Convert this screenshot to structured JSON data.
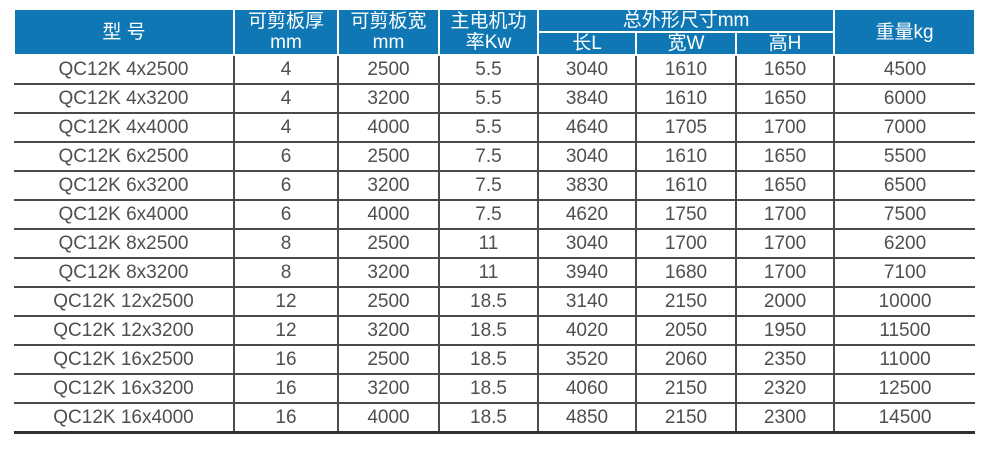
{
  "accent_color": "#0e77b4",
  "grid_color": "#4a4a4a",
  "table": {
    "header": {
      "model": "型 号",
      "thickness": "可剪板厚\nmm",
      "plate_width": "可剪板宽\nmm",
      "power": "主电机功\n率Kw",
      "dimensions_group": "总外形尺寸mm",
      "length_l": "长L",
      "width_w": "宽W",
      "height_h": "高H",
      "weight": "重量kg"
    },
    "rows": [
      [
        "QC12K 4x2500",
        "4",
        "2500",
        "5.5",
        "3040",
        "1610",
        "1650",
        "4500"
      ],
      [
        "QC12K 4x3200",
        "4",
        "3200",
        "5.5",
        "3840",
        "1610",
        "1650",
        "6000"
      ],
      [
        "QC12K 4x4000",
        "4",
        "4000",
        "5.5",
        "4640",
        "1705",
        "1700",
        "7000"
      ],
      [
        "QC12K 6x2500",
        "6",
        "2500",
        "7.5",
        "3040",
        "1610",
        "1650",
        "5500"
      ],
      [
        "QC12K 6x3200",
        "6",
        "3200",
        "7.5",
        "3830",
        "1610",
        "1650",
        "6500"
      ],
      [
        "QC12K 6x4000",
        "6",
        "4000",
        "7.5",
        "4620",
        "1750",
        "1700",
        "7500"
      ],
      [
        "QC12K 8x2500",
        "8",
        "2500",
        "11",
        "3040",
        "1700",
        "1700",
        "6200"
      ],
      [
        "QC12K 8x3200",
        "8",
        "3200",
        "11",
        "3940",
        "1680",
        "1700",
        "7100"
      ],
      [
        "QC12K 12x2500",
        "12",
        "2500",
        "18.5",
        "3140",
        "2150",
        "2000",
        "10000"
      ],
      [
        "QC12K 12x3200",
        "12",
        "3200",
        "18.5",
        "4020",
        "2050",
        "1950",
        "11500"
      ],
      [
        "QC12K 16x2500",
        "16",
        "2500",
        "18.5",
        "3520",
        "2060",
        "2350",
        "11000"
      ],
      [
        "QC12K 16x3200",
        "16",
        "3200",
        "18.5",
        "4060",
        "2150",
        "2320",
        "12500"
      ],
      [
        "QC12K 16x4000",
        "16",
        "4000",
        "18.5",
        "4850",
        "2150",
        "2300",
        "14500"
      ]
    ]
  }
}
